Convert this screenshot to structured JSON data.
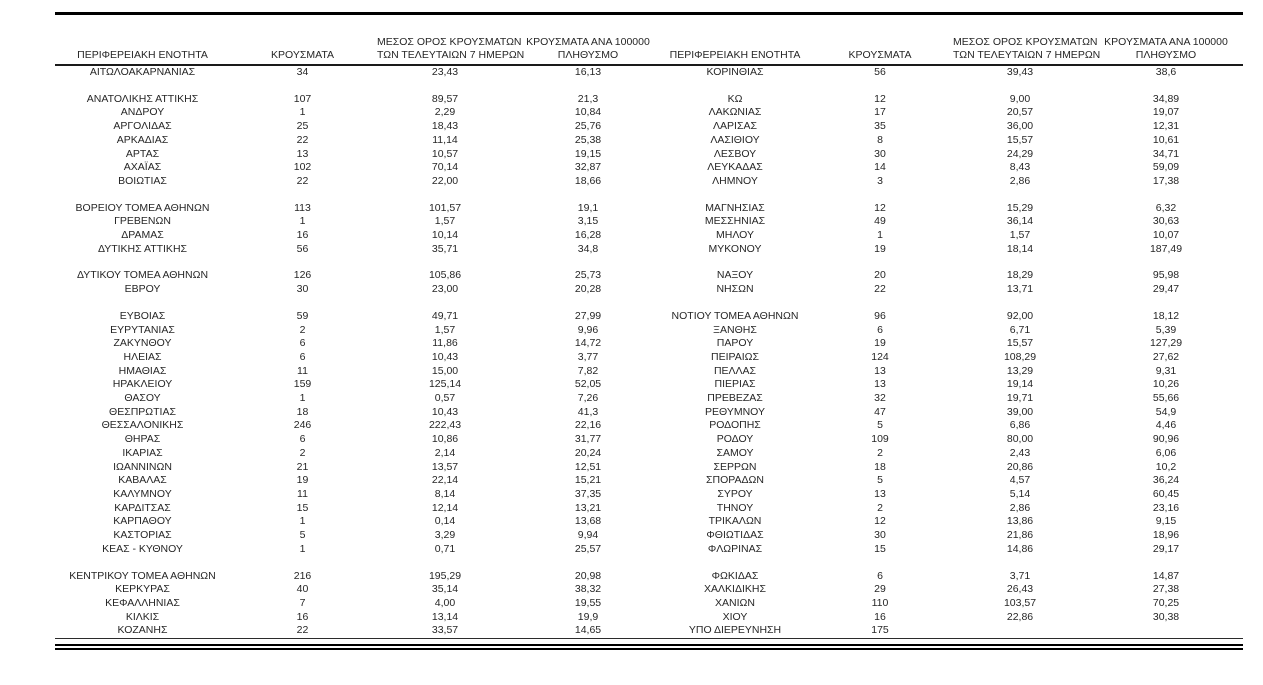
{
  "table": {
    "headers": {
      "region": "ΠΕΡΙΦΕΡΕΙΑΚΗ ΕΝΟΤΗΤΑ",
      "cases": "ΚΡΟΥΣΜΑΤΑ",
      "avg7_l1": "ΜΕΣΟΣ ΟΡΟΣ ΚΡΟΥΣΜΑΤΩΝ",
      "avg7_l2": "ΤΩΝ ΤΕΛΕΥΤΑΙΩΝ 7 ΗΜΕΡΩΝ",
      "per100k_l1": "ΚΡΟΥΣΜΑΤΑ ΑΝΑ 100000",
      "per100k_l2": "ΠΛΗΘΥΣΜΟ"
    },
    "rows": [
      [
        "ΑΙΤΩΛΟΑΚΑΡΝΑΝΙΑΣ",
        "34",
        "23,43",
        "16,13",
        "ΚΟΡΙΝΘΙΑΣ",
        "56",
        "39,43",
        "38,6"
      ],
      null,
      [
        "ΑΝΑΤΟΛΙΚΗΣ ΑΤΤΙΚΗΣ",
        "107",
        "89,57",
        "21,3",
        "ΚΩ",
        "12",
        "9,00",
        "34,89"
      ],
      [
        "ΑΝΔΡΟΥ",
        "1",
        "2,29",
        "10,84",
        "ΛΑΚΩΝΙΑΣ",
        "17",
        "20,57",
        "19,07"
      ],
      [
        "ΑΡΓΟΛΙΔΑΣ",
        "25",
        "18,43",
        "25,76",
        "ΛΑΡΙΣΑΣ",
        "35",
        "36,00",
        "12,31"
      ],
      [
        "ΑΡΚΑΔΙΑΣ",
        "22",
        "11,14",
        "25,38",
        "ΛΑΣΙΘΙΟΥ",
        "8",
        "15,57",
        "10,61"
      ],
      [
        "ΑΡΤΑΣ",
        "13",
        "10,57",
        "19,15",
        "ΛΕΣΒΟΥ",
        "30",
        "24,29",
        "34,71"
      ],
      [
        "ΑΧΑΪΑΣ",
        "102",
        "70,14",
        "32,87",
        "ΛΕΥΚΑΔΑΣ",
        "14",
        "8,43",
        "59,09"
      ],
      [
        "ΒΟΙΩΤΙΑΣ",
        "22",
        "22,00",
        "18,66",
        "ΛΗΜΝΟΥ",
        "3",
        "2,86",
        "17,38"
      ],
      null,
      [
        "ΒΟΡΕΙΟΥ ΤΟΜΕΑ ΑΘΗΝΩΝ",
        "113",
        "101,57",
        "19,1",
        "ΜΑΓΝΗΣΙΑΣ",
        "12",
        "15,29",
        "6,32"
      ],
      [
        "ΓΡΕΒΕΝΩΝ",
        "1",
        "1,57",
        "3,15",
        "ΜΕΣΣΗΝΙΑΣ",
        "49",
        "36,14",
        "30,63"
      ],
      [
        "ΔΡΑΜΑΣ",
        "16",
        "10,14",
        "16,28",
        "ΜΗΛΟΥ",
        "1",
        "1,57",
        "10,07"
      ],
      [
        "ΔΥΤΙΚΗΣ ΑΤΤΙΚΗΣ",
        "56",
        "35,71",
        "34,8",
        "ΜΥΚΟΝΟΥ",
        "19",
        "18,14",
        "187,49"
      ],
      null,
      [
        "ΔΥΤΙΚΟΥ ΤΟΜΕΑ ΑΘΗΝΩΝ",
        "126",
        "105,86",
        "25,73",
        "ΝΑΞΟΥ",
        "20",
        "18,29",
        "95,98"
      ],
      [
        "ΕΒΡΟΥ",
        "30",
        "23,00",
        "20,28",
        "ΝΗΣΩΝ",
        "22",
        "13,71",
        "29,47"
      ],
      null,
      [
        "ΕΥΒΟΙΑΣ",
        "59",
        "49,71",
        "27,99",
        "ΝΟΤΙΟΥ ΤΟΜΕΑ ΑΘΗΝΩΝ",
        "96",
        "92,00",
        "18,12"
      ],
      [
        "ΕΥΡΥΤΑΝΙΑΣ",
        "2",
        "1,57",
        "9,96",
        "ΞΑΝΘΗΣ",
        "6",
        "6,71",
        "5,39"
      ],
      [
        "ΖΑΚΥΝΘΟΥ",
        "6",
        "11,86",
        "14,72",
        "ΠΑΡΟΥ",
        "19",
        "15,57",
        "127,29"
      ],
      [
        "ΗΛΕΙΑΣ",
        "6",
        "10,43",
        "3,77",
        "ΠΕΙΡΑΙΩΣ",
        "124",
        "108,29",
        "27,62"
      ],
      [
        "ΗΜΑΘΙΑΣ",
        "11",
        "15,00",
        "7,82",
        "ΠΕΛΛΑΣ",
        "13",
        "13,29",
        "9,31"
      ],
      [
        "ΗΡΑΚΛΕΙΟΥ",
        "159",
        "125,14",
        "52,05",
        "ΠΙΕΡΙΑΣ",
        "13",
        "19,14",
        "10,26"
      ],
      [
        "ΘΑΣΟΥ",
        "1",
        "0,57",
        "7,26",
        "ΠΡΕΒΕΖΑΣ",
        "32",
        "19,71",
        "55,66"
      ],
      [
        "ΘΕΣΠΡΩΤΙΑΣ",
        "18",
        "10,43",
        "41,3",
        "ΡΕΘΥΜΝΟΥ",
        "47",
        "39,00",
        "54,9"
      ],
      [
        "ΘΕΣΣΑΛΟΝΙΚΗΣ",
        "246",
        "222,43",
        "22,16",
        "ΡΟΔΟΠΗΣ",
        "5",
        "6,86",
        "4,46"
      ],
      [
        "ΘΗΡΑΣ",
        "6",
        "10,86",
        "31,77",
        "ΡΟΔΟΥ",
        "109",
        "80,00",
        "90,96"
      ],
      [
        "ΙΚΑΡΙΑΣ",
        "2",
        "2,14",
        "20,24",
        "ΣΑΜΟΥ",
        "2",
        "2,43",
        "6,06"
      ],
      [
        "ΙΩΑΝΝΙΝΩΝ",
        "21",
        "13,57",
        "12,51",
        "ΣΕΡΡΩΝ",
        "18",
        "20,86",
        "10,2"
      ],
      [
        "ΚΑΒΑΛΑΣ",
        "19",
        "22,14",
        "15,21",
        "ΣΠΟΡΑΔΩΝ",
        "5",
        "4,57",
        "36,24"
      ],
      [
        "ΚΑΛΥΜΝΟΥ",
        "11",
        "8,14",
        "37,35",
        "ΣΥΡΟΥ",
        "13",
        "5,14",
        "60,45"
      ],
      [
        "ΚΑΡΔΙΤΣΑΣ",
        "15",
        "12,14",
        "13,21",
        "ΤΗΝΟΥ",
        "2",
        "2,86",
        "23,16"
      ],
      [
        "ΚΑΡΠΑΘΟΥ",
        "1",
        "0,14",
        "13,68",
        "ΤΡΙΚΑΛΩΝ",
        "12",
        "13,86",
        "9,15"
      ],
      [
        "ΚΑΣΤΟΡΙΑΣ",
        "5",
        "3,29",
        "9,94",
        "ΦΘΙΩΤΙΔΑΣ",
        "30",
        "21,86",
        "18,96"
      ],
      [
        "ΚΕΑΣ - ΚΥΘΝΟΥ",
        "1",
        "0,71",
        "25,57",
        "ΦΛΩΡΙΝΑΣ",
        "15",
        "14,86",
        "29,17"
      ],
      null,
      [
        "ΚΕΝΤΡΙΚΟΥ ΤΟΜΕΑ ΑΘΗΝΩΝ",
        "216",
        "195,29",
        "20,98",
        "ΦΩΚΙΔΑΣ",
        "6",
        "3,71",
        "14,87"
      ],
      [
        "ΚΕΡΚΥΡΑΣ",
        "40",
        "35,14",
        "38,32",
        "ΧΑΛΚΙΔΙΚΗΣ",
        "29",
        "26,43",
        "27,38"
      ],
      [
        "ΚΕΦΑΛΛΗΝΙΑΣ",
        "7",
        "4,00",
        "19,55",
        "ΧΑΝΙΩΝ",
        "110",
        "103,57",
        "70,25"
      ],
      [
        "ΚΙΛΚΙΣ",
        "16",
        "13,14",
        "19,9",
        "ΧΙΟΥ",
        "16",
        "22,86",
        "30,38"
      ],
      [
        "ΚΟΖΑΝΗΣ",
        "22",
        "33,57",
        "14,65",
        "ΥΠΟ ΔΙΕΡΕΥΝΗΣΗ",
        "175",
        "",
        ""
      ]
    ]
  }
}
